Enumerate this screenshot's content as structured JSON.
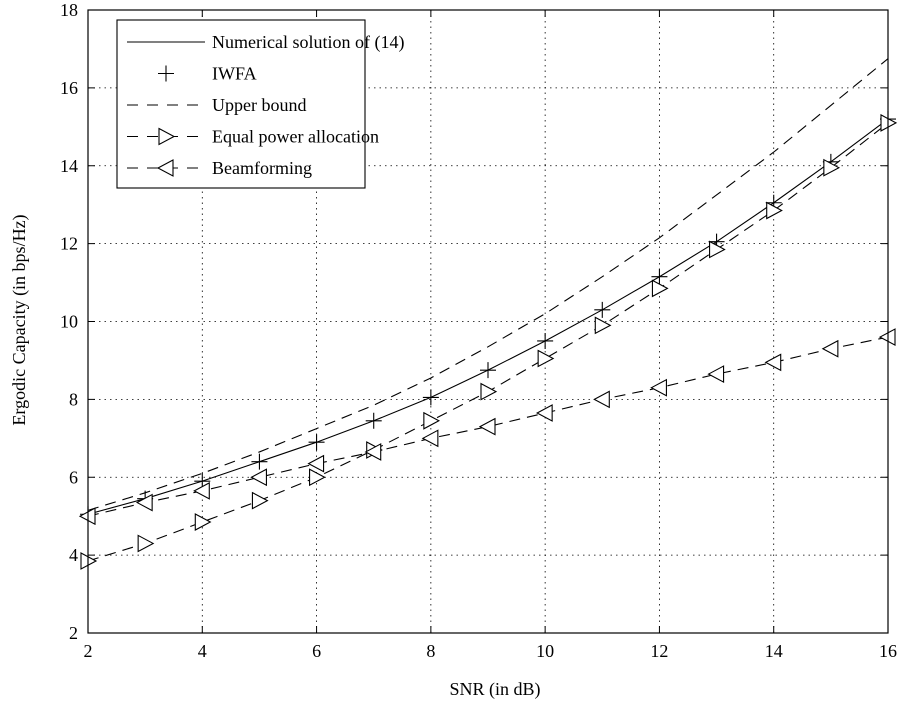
{
  "chart_data": {
    "type": "line",
    "title": "",
    "xlabel": "SNR (in dB)",
    "ylabel": "Ergodic Capacity (in bps/Hz)",
    "xlim": [
      2,
      16
    ],
    "ylim": [
      2,
      18
    ],
    "xticks": [
      "2",
      "4",
      "6",
      "8",
      "10",
      "12",
      "14",
      "16"
    ],
    "yticks": [
      "2",
      "4",
      "6",
      "8",
      "10",
      "12",
      "14",
      "16",
      "18"
    ],
    "grid": true,
    "legend_position": "top-left",
    "x": [
      2,
      3,
      4,
      5,
      6,
      7,
      8,
      9,
      10,
      11,
      12,
      13,
      14,
      15,
      16
    ],
    "series": [
      {
        "name": "Numerical solution of (14)",
        "style": "solid",
        "marker": "none",
        "values": [
          5.05,
          5.45,
          5.9,
          6.4,
          6.9,
          7.45,
          8.05,
          8.75,
          9.5,
          10.3,
          11.15,
          12.05,
          13.05,
          14.1,
          15.2
        ]
      },
      {
        "name": "IWFA",
        "style": "none",
        "marker": "plus",
        "values": [
          5.05,
          5.45,
          5.9,
          6.4,
          6.9,
          7.45,
          8.05,
          8.75,
          9.5,
          10.3,
          11.15,
          12.05,
          13.05,
          14.1,
          15.2
        ]
      },
      {
        "name": "Upper bound",
        "style": "dashed",
        "marker": "none",
        "values": [
          5.15,
          5.6,
          6.1,
          6.65,
          7.25,
          7.85,
          8.55,
          9.35,
          10.2,
          11.15,
          12.15,
          13.25,
          14.35,
          15.55,
          16.75
        ]
      },
      {
        "name": "Equal power allocation",
        "style": "dashed",
        "marker": "triangle-right",
        "values": [
          3.85,
          4.3,
          4.85,
          5.4,
          6.0,
          6.7,
          7.45,
          8.2,
          9.05,
          9.9,
          10.85,
          11.85,
          12.85,
          13.95,
          15.1
        ]
      },
      {
        "name": "Beamforming",
        "style": "dashed",
        "marker": "triangle-left",
        "values": [
          5.0,
          5.35,
          5.65,
          6.0,
          6.35,
          6.65,
          7.0,
          7.3,
          7.65,
          8.0,
          8.3,
          8.65,
          8.95,
          9.3,
          9.6
        ]
      }
    ]
  }
}
